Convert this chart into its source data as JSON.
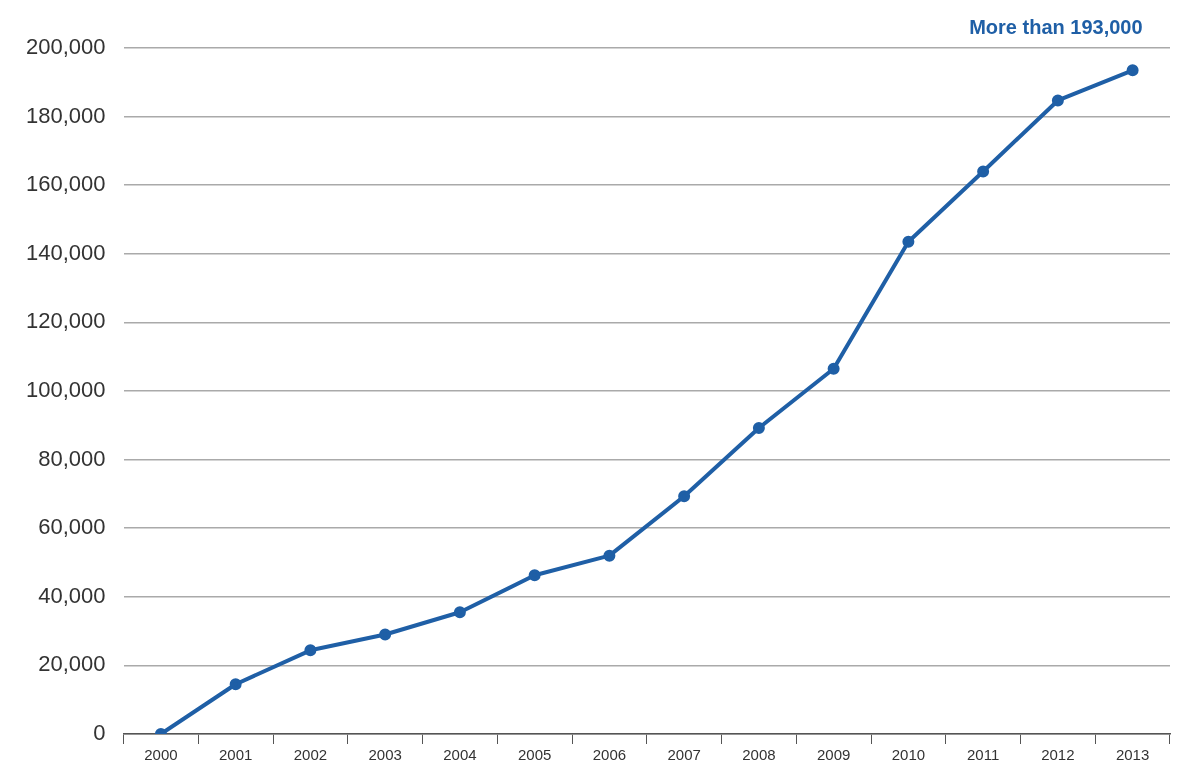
{
  "chart_data": {
    "type": "line",
    "categories": [
      "2000",
      "2001",
      "2002",
      "2003",
      "2004",
      "2005",
      "2006",
      "2007",
      "2008",
      "2009",
      "2010",
      "2011",
      "2012",
      "2013"
    ],
    "series": [
      {
        "color": "#1f5fa6",
        "values": [
          0,
          14500,
          24400,
          29000,
          35500,
          46300,
          52000,
          69300,
          89200,
          106500,
          143500,
          164000,
          184700,
          193500
        ]
      }
    ],
    "ylim": [
      0,
      200000
    ],
    "yticks": [
      {
        "value": 0,
        "label": "0"
      },
      {
        "value": 20000,
        "label": "20,000"
      },
      {
        "value": 40000,
        "label": "40,000"
      },
      {
        "value": 60000,
        "label": "60,000"
      },
      {
        "value": 80000,
        "label": "80,000"
      },
      {
        "value": 100000,
        "label": "100,000"
      },
      {
        "value": 120000,
        "label": "120,000"
      },
      {
        "value": 140000,
        "label": "140,000"
      },
      {
        "value": 160000,
        "label": "160,000"
      },
      {
        "value": 180000,
        "label": "180,000"
      },
      {
        "value": 200000,
        "label": "200,000"
      }
    ],
    "grid": "y",
    "legend": false,
    "marker": "circle",
    "line_style": "solid",
    "annotations": [
      {
        "text": "More than 193,000",
        "x": "2013",
        "y": 193500
      }
    ]
  }
}
